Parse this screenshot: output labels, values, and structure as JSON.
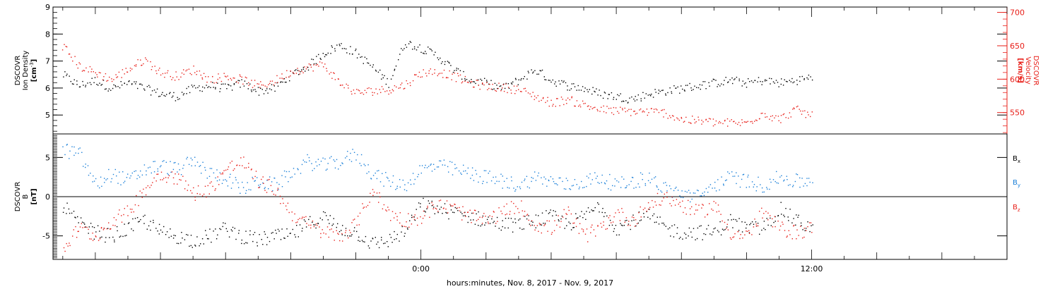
{
  "chart_data": {
    "type": "scatter",
    "xlabel": "hours:minutes, Nov.  8, 2017 - Nov.  9, 2017",
    "x_ticks": [
      {
        "hours": 0,
        "label": "0:00"
      },
      {
        "hours": 12,
        "label": "12:00"
      }
    ],
    "xlim_hours": [
      -11.3,
      18.0
    ],
    "colors": {
      "black": "#000000",
      "red": "#e8201a",
      "blue": "#1a7fd8"
    },
    "panels": [
      {
        "id": "density-velocity",
        "ylabel_lines": [
          "DSCOVR",
          "Ion Density",
          "[cm",
          "-3",
          "]"
        ],
        "ylim": [
          4.3,
          9.0
        ],
        "y_ticks": [
          5,
          6,
          7,
          8,
          9
        ],
        "right_axis": {
          "ylabel_lines": [
            "DSCOVR",
            "Velocity",
            "[km/s]"
          ],
          "ylim": [
            518,
            708
          ],
          "y_ticks": [
            550,
            600,
            650,
            700
          ],
          "color": "#e8201a"
        },
        "series": [
          {
            "key": "density",
            "axis": "left",
            "color": "#000000",
            "x": [
              -11.0,
              -10.5,
              -10.0,
              -9.5,
              -9.0,
              -8.5,
              -8.0,
              -7.5,
              -7.0,
              -6.5,
              -6.0,
              -5.5,
              -5.0,
              -4.5,
              -4.0,
              -3.5,
              -3.0,
              -2.5,
              -2.0,
              -1.5,
              -1.0,
              -0.5,
              0.0,
              0.5,
              1.0,
              1.5,
              2.0,
              2.5,
              3.0,
              3.5,
              4.0,
              4.5,
              5.0,
              5.5,
              6.0,
              6.5,
              7.0,
              7.5,
              8.0,
              8.5,
              9.0,
              9.5,
              10.0,
              10.5,
              11.0,
              11.5,
              12.0
            ],
            "y": [
              6.5,
              6.1,
              6.3,
              6.0,
              6.2,
              6.0,
              5.8,
              5.7,
              6.0,
              6.1,
              6.0,
              6.2,
              5.9,
              6.0,
              6.5,
              6.8,
              7.3,
              7.6,
              7.3,
              6.8,
              6.2,
              7.7,
              7.5,
              7.2,
              6.7,
              6.3,
              6.2,
              6.0,
              6.3,
              6.7,
              6.3,
              6.1,
              6.0,
              5.8,
              5.7,
              5.6,
              5.8,
              5.9,
              6.0,
              6.1,
              6.2,
              6.3,
              6.2,
              6.3,
              6.2,
              6.3,
              6.4
            ]
          },
          {
            "key": "velocity",
            "axis": "right",
            "color": "#e8201a",
            "x": [
              -11.0,
              -10.5,
              -10.0,
              -9.5,
              -9.0,
              -8.5,
              -8.0,
              -7.5,
              -7.0,
              -6.5,
              -6.0,
              -5.5,
              -5.0,
              -4.5,
              -4.0,
              -3.5,
              -3.0,
              -2.5,
              -2.0,
              -1.5,
              -1.0,
              -0.5,
              0.0,
              0.5,
              1.0,
              1.5,
              2.0,
              2.5,
              3.0,
              3.5,
              4.0,
              4.5,
              5.0,
              5.5,
              6.0,
              6.5,
              7.0,
              7.5,
              8.0,
              8.5,
              9.0,
              9.5,
              10.0,
              10.5,
              11.0,
              11.5,
              12.0
            ],
            "y": [
              650,
              620,
              610,
              600,
              615,
              630,
              610,
              605,
              615,
              600,
              605,
              600,
              590,
              598,
              612,
              618,
              622,
              595,
              580,
              583,
              585,
              592,
              610,
              612,
              605,
              595,
              590,
              588,
              585,
              575,
              565,
              570,
              562,
              555,
              553,
              552,
              552,
              550,
              540,
              538,
              536,
              535,
              535,
              550,
              540,
              555,
              545
            ]
          }
        ]
      },
      {
        "id": "magnetic-field",
        "ylabel_lines": [
          "DSCOVR",
          "B",
          "[nT]"
        ],
        "ylim": [
          -8.0,
          8.0
        ],
        "y_ticks": [
          -5,
          0,
          5
        ],
        "zero_line": true,
        "series": [
          {
            "name": "B",
            "sub": "x",
            "color": "#000000",
            "x": [
              -11.0,
              -10.5,
              -10.0,
              -9.5,
              -9.0,
              -8.5,
              -8.0,
              -7.5,
              -7.0,
              -6.5,
              -6.0,
              -5.5,
              -5.0,
              -4.5,
              -4.0,
              -3.5,
              -3.0,
              -2.5,
              -2.0,
              -1.5,
              -1.0,
              -0.5,
              0.0,
              0.5,
              1.0,
              1.5,
              2.0,
              2.5,
              3.0,
              3.5,
              4.0,
              4.5,
              5.0,
              5.5,
              6.0,
              6.5,
              7.0,
              7.5,
              8.0,
              8.5,
              9.0,
              9.5,
              10.0,
              10.5,
              11.0,
              11.5,
              12.0
            ],
            "y": [
              -1.0,
              -3.5,
              -4.5,
              -5.0,
              -4.0,
              -3.0,
              -4.5,
              -5.0,
              -5.5,
              -5.0,
              -4.0,
              -5.0,
              -5.5,
              -5.0,
              -5.0,
              -3.5,
              -2.5,
              -4.0,
              -4.5,
              -6.0,
              -5.5,
              -4.5,
              -1.0,
              -1.5,
              -2.0,
              -2.5,
              -3.0,
              -3.5,
              -3.5,
              -3.0,
              -2.5,
              -3.5,
              -2.5,
              -1.0,
              -4.0,
              -3.0,
              -2.5,
              -4.0,
              -4.5,
              -4.5,
              -4.5,
              -3.0,
              -4.0,
              -4.0,
              -1.5,
              -3.0,
              -4.0
            ]
          },
          {
            "name": "B",
            "sub": "y",
            "color": "#1a7fd8",
            "x": [
              -11.0,
              -10.5,
              -10.0,
              -9.5,
              -9.0,
              -8.5,
              -8.0,
              -7.5,
              -7.0,
              -6.5,
              -6.0,
              -5.5,
              -5.0,
              -4.5,
              -4.0,
              -3.5,
              -3.0,
              -2.5,
              -2.0,
              -1.5,
              -1.0,
              -0.5,
              0.0,
              0.5,
              1.0,
              1.5,
              2.0,
              2.5,
              3.0,
              3.5,
              4.0,
              4.5,
              5.0,
              5.5,
              6.0,
              6.5,
              7.0,
              7.5,
              8.0,
              8.5,
              9.0,
              9.5,
              10.0,
              10.5,
              11.0,
              11.5,
              12.0
            ],
            "y": [
              6.0,
              5.5,
              1.5,
              3.0,
              2.0,
              3.5,
              4.0,
              3.5,
              4.5,
              3.0,
              2.5,
              1.0,
              2.0,
              1.5,
              3.0,
              4.5,
              4.0,
              4.5,
              5.5,
              3.0,
              2.0,
              1.5,
              3.5,
              4.0,
              3.5,
              3.0,
              2.5,
              2.0,
              1.5,
              2.5,
              2.0,
              1.5,
              2.0,
              2.5,
              1.5,
              2.0,
              2.5,
              1.0,
              0.5,
              0.0,
              1.5,
              2.5,
              2.0,
              1.5,
              2.5,
              2.0,
              2.0
            ]
          },
          {
            "name": "B",
            "sub": "z",
            "color": "#e8201a",
            "x": [
              -11.0,
              -10.5,
              -10.0,
              -9.5,
              -9.0,
              -8.5,
              -8.0,
              -7.5,
              -7.0,
              -6.5,
              -6.0,
              -5.5,
              -5.0,
              -4.5,
              -4.0,
              -3.5,
              -3.0,
              -2.5,
              -2.0,
              -1.5,
              -1.0,
              -0.5,
              0.0,
              0.5,
              1.0,
              1.5,
              2.0,
              2.5,
              3.0,
              3.5,
              4.0,
              4.5,
              5.0,
              5.5,
              6.0,
              6.5,
              7.0,
              7.5,
              8.0,
              8.5,
              9.0,
              9.5,
              10.0,
              10.5,
              11.0,
              11.5,
              12.0
            ],
            "y": [
              -6.5,
              -4.0,
              -5.0,
              -3.0,
              -2.0,
              1.0,
              3.0,
              2.5,
              0.5,
              1.0,
              3.5,
              4.5,
              2.0,
              1.0,
              -2.0,
              -3.5,
              -4.5,
              -5.0,
              -3.5,
              1.0,
              -2.0,
              -3.0,
              -2.5,
              -1.0,
              -1.5,
              -2.5,
              -3.0,
              -2.0,
              -1.0,
              -3.5,
              -4.0,
              -2.0,
              -5.0,
              -4.0,
              -2.0,
              -3.0,
              -1.0,
              0.0,
              -1.0,
              -2.0,
              -1.0,
              -4.5,
              -5.0,
              -2.0,
              -4.0,
              -4.5,
              -4.0
            ]
          }
        ]
      }
    ]
  }
}
